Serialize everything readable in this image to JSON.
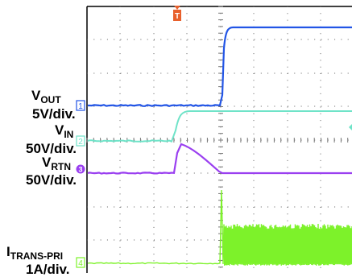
{
  "chart_data": {
    "type": "line",
    "title": "",
    "grid": true,
    "trigger_marker": "T",
    "series": [
      {
        "name": "VOUT",
        "channel": "1",
        "scale": "5V/div.",
        "color": "#2255e6"
      },
      {
        "name": "VIN",
        "channel": "2",
        "scale": "50V/div.",
        "color": "#6fe3c8"
      },
      {
        "name": "VRTN",
        "channel": "3",
        "scale": "50V/div.",
        "color": "#9a3ff0"
      },
      {
        "name": "ITRANS-PRI",
        "channel": "4",
        "scale": "1A/div.",
        "color": "#7df22a"
      }
    ]
  },
  "labels": {
    "vout_main": "V",
    "vout_sub": "OUT",
    "vout_scale": "5V/div.",
    "vin_main": "V",
    "vin_sub": "IN",
    "vin_scale": "50V/div.",
    "vrtn_main": "V",
    "vrtn_sub": "RTN",
    "vrtn_scale": "50V/div.",
    "itrans_main": "I",
    "itrans_sub": "TRANS-PRI",
    "itrans_scale": "1A/div."
  }
}
